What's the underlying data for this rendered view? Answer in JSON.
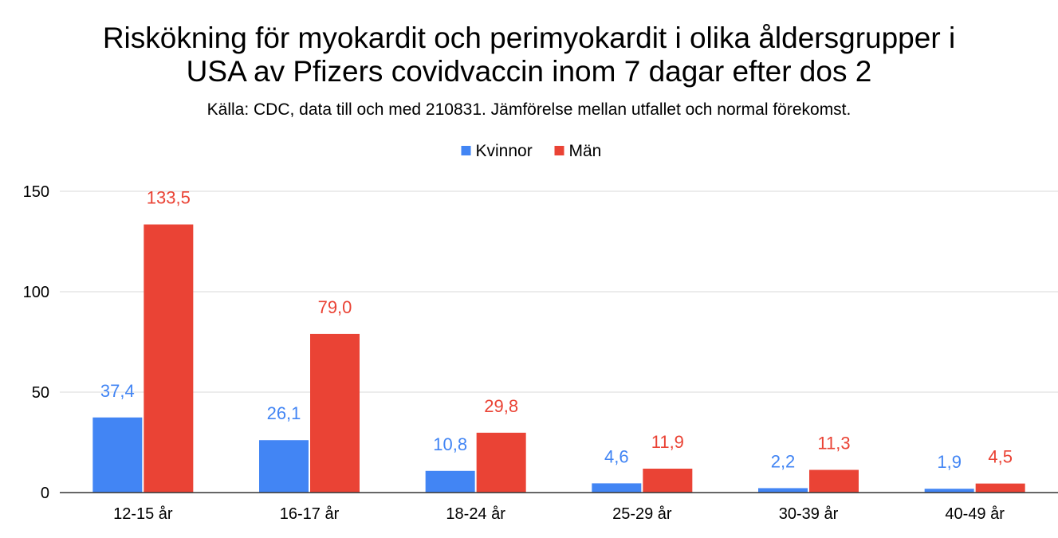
{
  "chart_data": {
    "type": "bar",
    "title_line1": "Riskökning för myokardit och perimyokardit i olika åldersgrupper i",
    "title_line2": "USA av Pfizers covidvaccin inom 7 dagar efter dos 2",
    "subtitle": "Källa: CDC, data till och med 210831. Jämförelse mellan utfallet och normal förekomst.",
    "xlabel": "",
    "ylabel": "",
    "categories": [
      "12-15 år",
      "16-17 år",
      "18-24 år",
      "25-29 år",
      "30-39 år",
      "40-49 år"
    ],
    "series": [
      {
        "name": "Kvinnor",
        "color": "#4285f4",
        "values": [
          37.4,
          26.1,
          10.8,
          4.6,
          2.2,
          1.9
        ],
        "labels": [
          "37,4",
          "26,1",
          "10,8",
          "4,6",
          "2,2",
          "1,9"
        ]
      },
      {
        "name": "Män",
        "color": "#ea4335",
        "values": [
          133.5,
          79.0,
          29.8,
          11.9,
          11.3,
          4.5
        ],
        "labels": [
          "133,5",
          "79,0",
          "29,8",
          "11,9",
          "11,3",
          "4,5"
        ]
      }
    ],
    "ylim": [
      0,
      150
    ],
    "yticks": [
      0,
      50,
      100,
      150
    ],
    "ytick_labels": [
      "0",
      "50",
      "100",
      "150"
    ],
    "grid": true,
    "legend_position": "top-center"
  }
}
